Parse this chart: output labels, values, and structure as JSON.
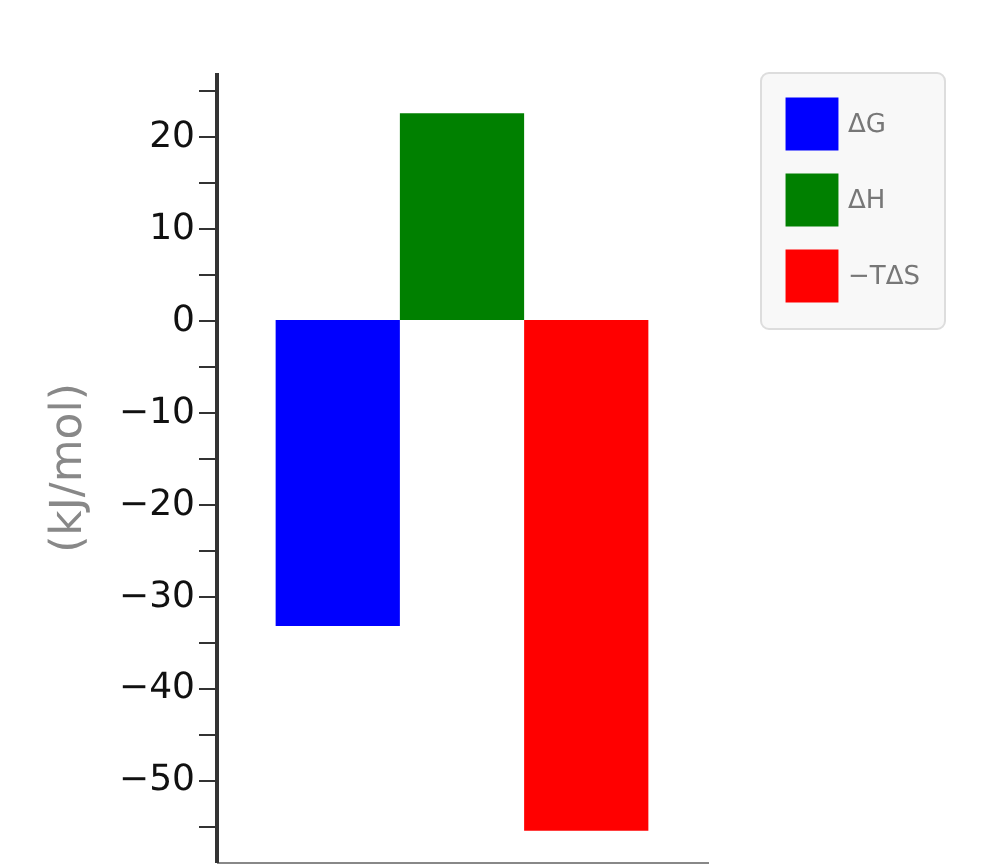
{
  "chart_data": {
    "type": "bar",
    "ylabel": "(kJ/mol)",
    "categories": [
      null,
      null,
      null
    ],
    "stacked": true,
    "series": [
      {
        "name": "ΔG",
        "color": "#0000ff",
        "values": [
          -33.3,
          null,
          null
        ]
      },
      {
        "name": "ΔH",
        "color": "#008000",
        "values": [
          null,
          22.5,
          null
        ]
      },
      {
        "name": "−TΔS",
        "color": "#ff0000",
        "values": [
          null,
          null,
          -55.6
        ]
      }
    ],
    "ylim": [
      -59,
      27
    ],
    "yticks": [
      {
        "value": -55,
        "label": null
      },
      -50,
      {
        "value": -45,
        "label": null
      },
      -40,
      {
        "value": -35,
        "label": null
      },
      -30,
      {
        "value": -25,
        "label": null
      },
      -20,
      {
        "value": -15,
        "label": null
      },
      -10,
      {
        "value": -5,
        "label": null
      },
      0,
      {
        "value": 5,
        "label": null
      },
      10,
      {
        "value": 15,
        "label": null
      },
      20,
      {
        "value": 25,
        "label": null
      }
    ],
    "grid": false,
    "legend": "top right"
  }
}
